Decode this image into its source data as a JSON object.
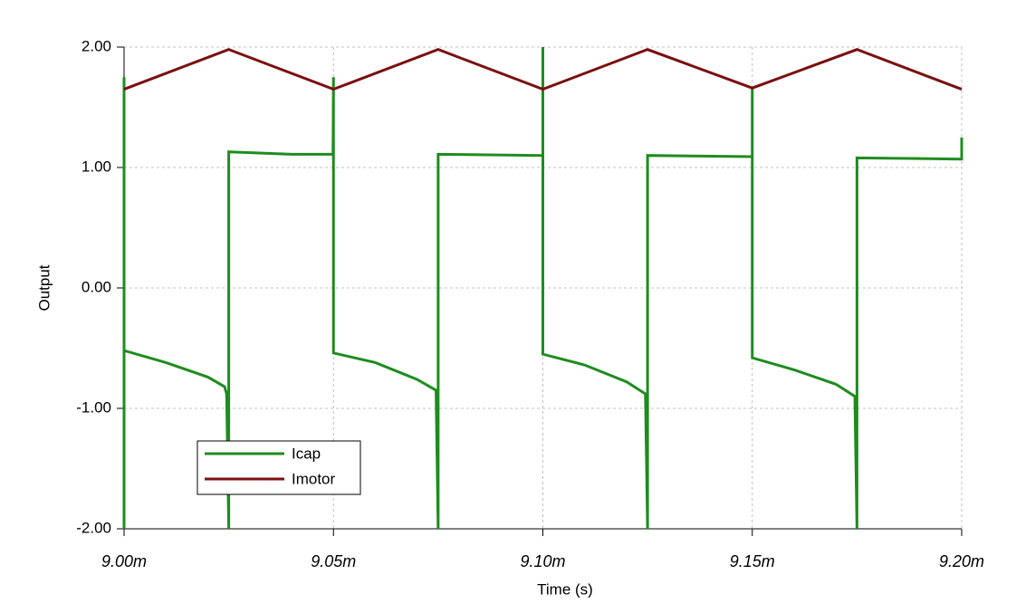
{
  "chart_data": {
    "type": "line",
    "xlabel": "Time (s)",
    "ylabel": "Output",
    "xlim": [
      0.009,
      0.0092
    ],
    "ylim": [
      -2,
      2
    ],
    "xticks": [
      {
        "value": 0.009,
        "label": "9.00m"
      },
      {
        "value": 0.00905,
        "label": "9.05m"
      },
      {
        "value": 0.0091,
        "label": "9.10m"
      },
      {
        "value": 0.00915,
        "label": "9.15m"
      },
      {
        "value": 0.0092,
        "label": "9.20m"
      }
    ],
    "yticks": [
      {
        "value": -2,
        "label": "-2.00"
      },
      {
        "value": -1,
        "label": "-1.00"
      },
      {
        "value": 0,
        "label": "0.00"
      },
      {
        "value": 1,
        "label": "1.00"
      },
      {
        "value": 2,
        "label": "2.00"
      }
    ],
    "grid": true,
    "legend": "lower left",
    "series": [
      {
        "name": "Icap",
        "color": "#1e8c1e",
        "x": [
          0.009,
          0.009,
          0.009,
          0.00901,
          0.00902,
          0.009024,
          0.0090245,
          0.009025,
          0.009025,
          0.00904,
          0.0090499,
          0.00905,
          0.00905,
          0.00906,
          0.00907,
          0.0090745,
          0.009075,
          0.009075,
          0.0091,
          0.0091,
          0.0091,
          0.00911,
          0.00912,
          0.0091245,
          0.009125,
          0.009125,
          0.00915,
          0.00915,
          0.00915,
          0.00916,
          0.00917,
          0.0091745,
          0.009175,
          0.009175,
          0.0092,
          0.0092
        ],
        "values": [
          -2,
          1.75,
          -0.52,
          -0.62,
          -0.74,
          -0.82,
          -0.88,
          -2,
          1.13,
          1.11,
          1.11,
          1.75,
          -0.54,
          -0.62,
          -0.76,
          -0.85,
          -2,
          1.11,
          1.1,
          2,
          -0.55,
          -0.64,
          -0.78,
          -0.88,
          -2,
          1.1,
          1.09,
          1.65,
          -0.58,
          -0.68,
          -0.8,
          -0.9,
          -2,
          1.08,
          1.07,
          1.25
        ]
      },
      {
        "name": "Imotor",
        "color": "#7a1010",
        "x": [
          0.009,
          0.009025,
          0.00905,
          0.009075,
          0.0091,
          0.009125,
          0.00915,
          0.009175,
          0.0092
        ],
        "values": [
          1.65,
          1.98,
          1.65,
          1.98,
          1.65,
          1.98,
          1.66,
          1.98,
          1.65
        ]
      }
    ]
  }
}
